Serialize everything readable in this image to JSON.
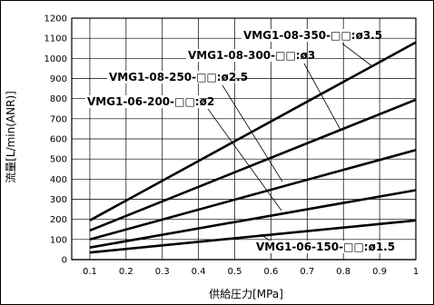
{
  "chart_data": {
    "type": "line",
    "xlabel": "供給圧力[MPa]",
    "ylabel": "流量[L/min(ANR)]",
    "xlim": [
      0.05,
      1.0
    ],
    "ylim": [
      0,
      1200
    ],
    "x_ticks": [
      "0.1",
      "0.2",
      "0.3",
      "0.4",
      "0.5",
      "0.6",
      "0.7",
      "0.8",
      "0.9",
      "1"
    ],
    "y_ticks": [
      "0",
      "100",
      "200",
      "300",
      "400",
      "500",
      "600",
      "700",
      "800",
      "900",
      "1000",
      "1100",
      "1200"
    ],
    "grid": true,
    "series": [
      {
        "name": "VMG1-08-350-□□:ø3.5",
        "x": [
          0.1,
          1.0
        ],
        "y": [
          195,
          1080
        ]
      },
      {
        "name": "VMG1-08-300-□□:ø3",
        "x": [
          0.1,
          1.0
        ],
        "y": [
          145,
          795
        ]
      },
      {
        "name": "VMG1-08-250-□□:ø2.5",
        "x": [
          0.1,
          1.0
        ],
        "y": [
          100,
          545
        ]
      },
      {
        "name": "VMG1-06-200-□□:ø2",
        "x": [
          0.1,
          1.0
        ],
        "y": [
          60,
          345
        ]
      },
      {
        "name": "VMG1-06-150-□□:ø1.5",
        "x": [
          0.1,
          1.0
        ],
        "y": [
          35,
          195
        ]
      }
    ]
  }
}
